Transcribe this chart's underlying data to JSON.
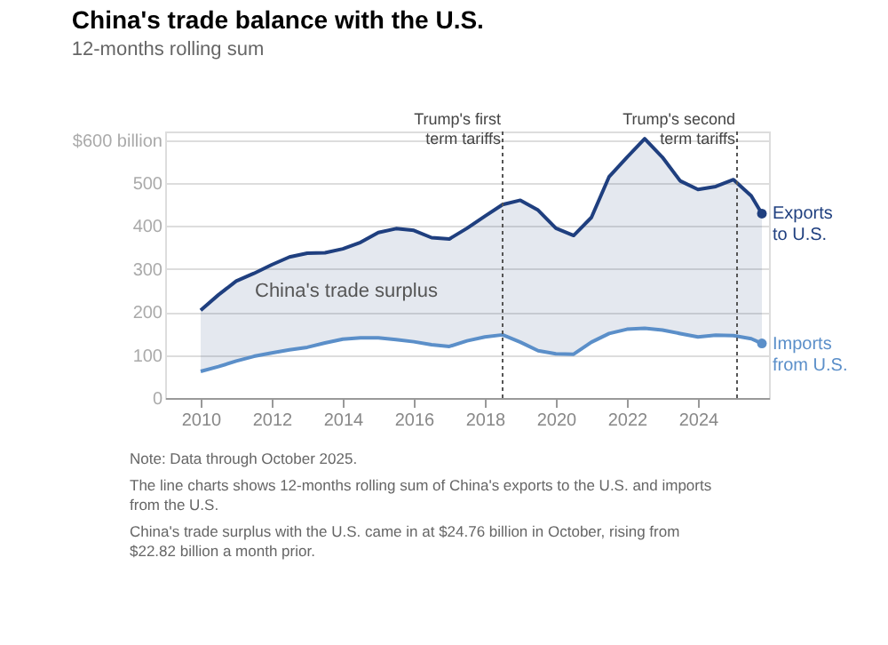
{
  "chart_data": {
    "type": "line",
    "title": "China's trade balance with the U.S.",
    "subtitle": "12-months rolling sum",
    "x": [
      2010,
      2010.5,
      2011,
      2011.5,
      2012,
      2012.5,
      2013,
      2013.5,
      2014,
      2014.5,
      2015,
      2015.5,
      2016,
      2016.5,
      2017,
      2017.5,
      2018,
      2018.5,
      2019,
      2019.5,
      2020,
      2020.5,
      2021,
      2021.5,
      2022,
      2022.5,
      2023,
      2023.5,
      2024,
      2024.5,
      2025,
      2025.5,
      2025.8
    ],
    "series": [
      {
        "name": "Exports\nto U.S.",
        "color": "#1f3f7f",
        "values": [
          204,
          240,
          272,
          290,
          310,
          328,
          337,
          338,
          347,
          362,
          385,
          394,
          390,
          373,
          370,
          395,
          423,
          450,
          460,
          437,
          395,
          378,
          420,
          515,
          560,
          603,
          560,
          505,
          485,
          492,
          508,
          470,
          429
        ],
        "lower": [
          62,
          73,
          86,
          97,
          105,
          112,
          118,
          128,
          137,
          140,
          140,
          136,
          131,
          124,
          120,
          133,
          142,
          147,
          130,
          110,
          103,
          102,
          130,
          150,
          160,
          162,
          158,
          150,
          142,
          146,
          145,
          138,
          127
        ],
        "upper": [
          204,
          240,
          272,
          290,
          310,
          328,
          337,
          338,
          347,
          362,
          385,
          394,
          390,
          373,
          370,
          395,
          423,
          450,
          460,
          437,
          395,
          378,
          420,
          515,
          560,
          603,
          560,
          505,
          485,
          492,
          508,
          470,
          429
        ]
      },
      {
        "name": "Imports\nfrom U.S.",
        "color": "#5b8fc9",
        "values": [
          62,
          73,
          86,
          97,
          105,
          112,
          118,
          128,
          137,
          140,
          140,
          136,
          131,
          124,
          120,
          133,
          142,
          147,
          130,
          110,
          103,
          102,
          130,
          150,
          160,
          162,
          158,
          150,
          142,
          146,
          145,
          138,
          127
        ]
      }
    ],
    "xlim": [
      2009,
      2026
    ],
    "xticks": [
      2010,
      2012,
      2014,
      2016,
      2018,
      2020,
      2022,
      2024
    ],
    "ylim": [
      0,
      620
    ],
    "yticks": [
      0,
      100,
      200,
      300,
      400,
      500,
      {
        "value": 600,
        "label": "$600 billion"
      }
    ],
    "grid": "y",
    "legend": false,
    "line_style": "solid",
    "ref_lines": [
      {
        "axis": "x",
        "value": 2018.5,
        "label": "Trump's first\nterm tariffs",
        "color": "#555555",
        "line_style": "dotted"
      },
      {
        "axis": "x",
        "value": 2025.1,
        "label": "Trump's second\nterm tariffs",
        "color": "#555555",
        "line_style": "dotted"
      }
    ],
    "annotations": [
      "China's trade surplus",
      "Note: Data through October 2025.",
      "The line charts shows 12-months rolling sum of China's exports to the U.S. and imports from the U.S.",
      "China's trade surplus with the U.S. came in at $24.76 billion in October, rising from $22.82 billion a month prior."
    ]
  }
}
